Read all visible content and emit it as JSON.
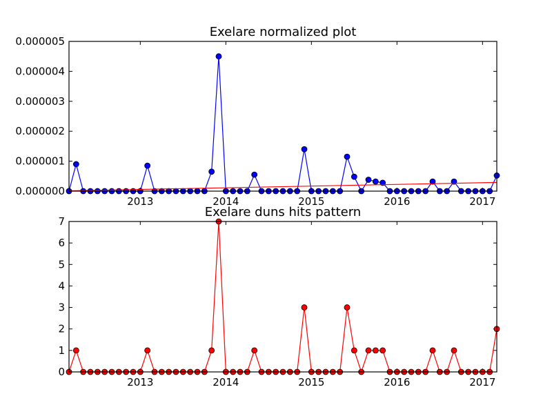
{
  "chart_data": [
    {
      "type": "line",
      "title": "Exelare normalized plot",
      "xlim": [
        "2012-03",
        "2017-03"
      ],
      "ylim": [
        0,
        5e-06
      ],
      "x_ticks": [
        {
          "date": "2013-01",
          "label": "2013"
        },
        {
          "date": "2014-01",
          "label": "2014"
        },
        {
          "date": "2015-01",
          "label": "2015"
        },
        {
          "date": "2016-01",
          "label": "2016"
        },
        {
          "date": "2017-01",
          "label": "2017"
        }
      ],
      "y_ticks": [
        {
          "value": 0,
          "label": "0.000000"
        },
        {
          "value": 1e-06,
          "label": "0.000001"
        },
        {
          "value": 2e-06,
          "label": "0.000002"
        },
        {
          "value": 3e-06,
          "label": "0.000003"
        },
        {
          "value": 4e-06,
          "label": "0.000004"
        },
        {
          "value": 5e-06,
          "label": "0.000005"
        }
      ],
      "series": [
        {
          "style": "line-markers",
          "color": "#0000ff",
          "points": [
            [
              "2012-03",
              0
            ],
            [
              "2012-04",
              9e-07
            ],
            [
              "2012-05",
              0
            ],
            [
              "2012-06",
              0
            ],
            [
              "2012-07",
              0
            ],
            [
              "2012-08",
              0
            ],
            [
              "2012-09",
              0
            ],
            [
              "2012-10",
              0
            ],
            [
              "2012-11",
              0
            ],
            [
              "2012-12",
              0
            ],
            [
              "2013-01",
              0
            ],
            [
              "2013-02",
              8.5e-07
            ],
            [
              "2013-03",
              0
            ],
            [
              "2013-04",
              0
            ],
            [
              "2013-05",
              0
            ],
            [
              "2013-06",
              0
            ],
            [
              "2013-07",
              0
            ],
            [
              "2013-08",
              0
            ],
            [
              "2013-09",
              0
            ],
            [
              "2013-10",
              0
            ],
            [
              "2013-11",
              6.5e-07
            ],
            [
              "2013-12",
              4.5e-06
            ],
            [
              "2014-01",
              0
            ],
            [
              "2014-02",
              0
            ],
            [
              "2014-03",
              0
            ],
            [
              "2014-04",
              0
            ],
            [
              "2014-05",
              5.5e-07
            ],
            [
              "2014-06",
              0
            ],
            [
              "2014-07",
              0
            ],
            [
              "2014-08",
              0
            ],
            [
              "2014-09",
              0
            ],
            [
              "2014-10",
              0
            ],
            [
              "2014-11",
              0
            ],
            [
              "2014-12",
              1.4e-06
            ],
            [
              "2015-01",
              0
            ],
            [
              "2015-02",
              0
            ],
            [
              "2015-03",
              0
            ],
            [
              "2015-04",
              0
            ],
            [
              "2015-05",
              0
            ],
            [
              "2015-06",
              1.15e-06
            ],
            [
              "2015-07",
              4.8e-07
            ],
            [
              "2015-08",
              0
            ],
            [
              "2015-09",
              3.8e-07
            ],
            [
              "2015-10",
              3.2e-07
            ],
            [
              "2015-11",
              2.8e-07
            ],
            [
              "2015-12",
              0
            ],
            [
              "2016-01",
              0
            ],
            [
              "2016-02",
              0
            ],
            [
              "2016-03",
              0
            ],
            [
              "2016-04",
              0
            ],
            [
              "2016-05",
              0
            ],
            [
              "2016-06",
              3.2e-07
            ],
            [
              "2016-07",
              0
            ],
            [
              "2016-08",
              0
            ],
            [
              "2016-09",
              3.2e-07
            ],
            [
              "2016-10",
              0
            ],
            [
              "2016-11",
              0
            ],
            [
              "2016-12",
              0
            ],
            [
              "2017-01",
              0
            ],
            [
              "2017-02",
              0
            ],
            [
              "2017-03",
              5.2e-07
            ]
          ]
        },
        {
          "style": "line",
          "color": "#ff0000",
          "points": [
            [
              "2012-03",
              1e-08
            ],
            [
              "2017-03",
              2.9e-07
            ]
          ]
        }
      ]
    },
    {
      "type": "line",
      "title": "Exelare duns hits pattern",
      "xlim": [
        "2012-03",
        "2017-03"
      ],
      "ylim": [
        0,
        7
      ],
      "x_ticks": [
        {
          "date": "2013-01",
          "label": "2013"
        },
        {
          "date": "2014-01",
          "label": "2014"
        },
        {
          "date": "2015-01",
          "label": "2015"
        },
        {
          "date": "2016-01",
          "label": "2016"
        },
        {
          "date": "2017-01",
          "label": "2017"
        }
      ],
      "y_ticks": [
        {
          "value": 0,
          "label": "0"
        },
        {
          "value": 1,
          "label": "1"
        },
        {
          "value": 2,
          "label": "2"
        },
        {
          "value": 3,
          "label": "3"
        },
        {
          "value": 4,
          "label": "4"
        },
        {
          "value": 5,
          "label": "5"
        },
        {
          "value": 6,
          "label": "6"
        },
        {
          "value": 7,
          "label": "7"
        }
      ],
      "series": [
        {
          "style": "line-markers",
          "color": "#ff0000",
          "points": [
            [
              "2012-03",
              0
            ],
            [
              "2012-04",
              1
            ],
            [
              "2012-05",
              0
            ],
            [
              "2012-06",
              0
            ],
            [
              "2012-07",
              0
            ],
            [
              "2012-08",
              0
            ],
            [
              "2012-09",
              0
            ],
            [
              "2012-10",
              0
            ],
            [
              "2012-11",
              0
            ],
            [
              "2012-12",
              0
            ],
            [
              "2013-01",
              0
            ],
            [
              "2013-02",
              1
            ],
            [
              "2013-03",
              0
            ],
            [
              "2013-04",
              0
            ],
            [
              "2013-05",
              0
            ],
            [
              "2013-06",
              0
            ],
            [
              "2013-07",
              0
            ],
            [
              "2013-08",
              0
            ],
            [
              "2013-09",
              0
            ],
            [
              "2013-10",
              0
            ],
            [
              "2013-11",
              1
            ],
            [
              "2013-12",
              7
            ],
            [
              "2014-01",
              0
            ],
            [
              "2014-02",
              0
            ],
            [
              "2014-03",
              0
            ],
            [
              "2014-04",
              0
            ],
            [
              "2014-05",
              1
            ],
            [
              "2014-06",
              0
            ],
            [
              "2014-07",
              0
            ],
            [
              "2014-08",
              0
            ],
            [
              "2014-09",
              0
            ],
            [
              "2014-10",
              0
            ],
            [
              "2014-11",
              0
            ],
            [
              "2014-12",
              3
            ],
            [
              "2015-01",
              0
            ],
            [
              "2015-02",
              0
            ],
            [
              "2015-03",
              0
            ],
            [
              "2015-04",
              0
            ],
            [
              "2015-05",
              0
            ],
            [
              "2015-06",
              3
            ],
            [
              "2015-07",
              1
            ],
            [
              "2015-08",
              0
            ],
            [
              "2015-09",
              1
            ],
            [
              "2015-10",
              1
            ],
            [
              "2015-11",
              1
            ],
            [
              "2015-12",
              0
            ],
            [
              "2016-01",
              0
            ],
            [
              "2016-02",
              0
            ],
            [
              "2016-03",
              0
            ],
            [
              "2016-04",
              0
            ],
            [
              "2016-05",
              0
            ],
            [
              "2016-06",
              1
            ],
            [
              "2016-07",
              0
            ],
            [
              "2016-08",
              0
            ],
            [
              "2016-09",
              1
            ],
            [
              "2016-10",
              0
            ],
            [
              "2016-11",
              0
            ],
            [
              "2016-12",
              0
            ],
            [
              "2017-01",
              0
            ],
            [
              "2017-02",
              0
            ],
            [
              "2017-03",
              2
            ]
          ]
        }
      ]
    }
  ]
}
